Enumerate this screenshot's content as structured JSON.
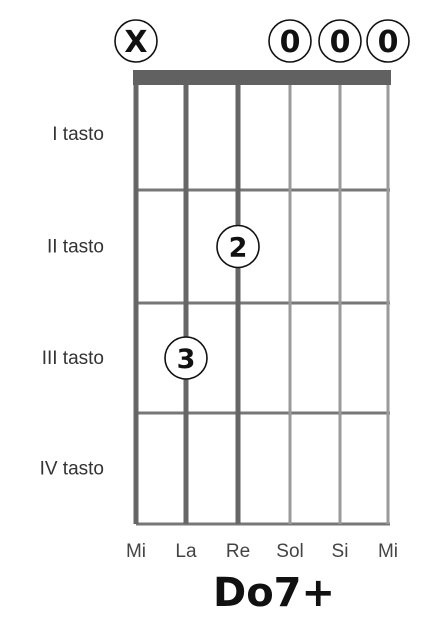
{
  "chord": {
    "name": "Do7+"
  },
  "string_markers": [
    {
      "string": 1,
      "symbol": "X"
    },
    {
      "string": 4,
      "symbol": "0"
    },
    {
      "string": 5,
      "symbol": "0"
    },
    {
      "string": 6,
      "symbol": "0"
    }
  ],
  "fret_labels": [
    "I tasto",
    "II tasto",
    "III tasto",
    "IV tasto"
  ],
  "string_names": [
    "Mi",
    "La",
    "Re",
    "Sol",
    "Si",
    "Mi"
  ],
  "fingers": [
    {
      "string": 3,
      "fret": 2,
      "finger": "2"
    },
    {
      "string": 2,
      "fret": 3,
      "finger": "3"
    }
  ],
  "colors": {
    "nut": "#616161",
    "string_dark": "#666666",
    "string_light": "#9a9a9a",
    "fret_line": "#777777",
    "board_border": "#666666"
  }
}
